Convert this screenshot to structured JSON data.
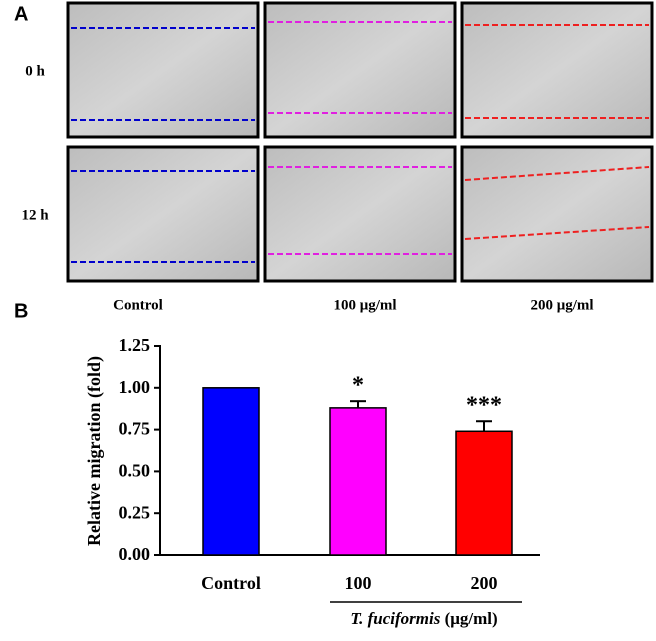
{
  "panel_a": {
    "label": "A",
    "rows": [
      "0 h",
      "12 h"
    ],
    "columns": [
      "Control",
      "100 μg/ml",
      "200 μg/ml"
    ]
  },
  "chart_data": {
    "type": "bar",
    "panel_label": "B",
    "ylabel": "Relative migration (fold)",
    "xlabel_italic": "T. fuciformis",
    "xlabel": "(μg/ml)",
    "categories": [
      "Control",
      "100",
      "200"
    ],
    "values": [
      1.0,
      0.88,
      0.74
    ],
    "errors": [
      0,
      0.04,
      0.06
    ],
    "significance": [
      null,
      "*",
      "***"
    ],
    "colors": [
      "#0000ff",
      "#ff00ff",
      "#ff0000"
    ],
    "ylim": [
      0,
      1.25
    ],
    "yticks": [
      {
        "value": 0,
        "label": "0.00"
      },
      {
        "value": 0.25,
        "label": "0.25"
      },
      {
        "value": 0.5,
        "label": "0.50"
      },
      {
        "value": 0.75,
        "label": "0.75"
      },
      {
        "value": 1,
        "label": "1.00"
      },
      1.25
    ]
  }
}
